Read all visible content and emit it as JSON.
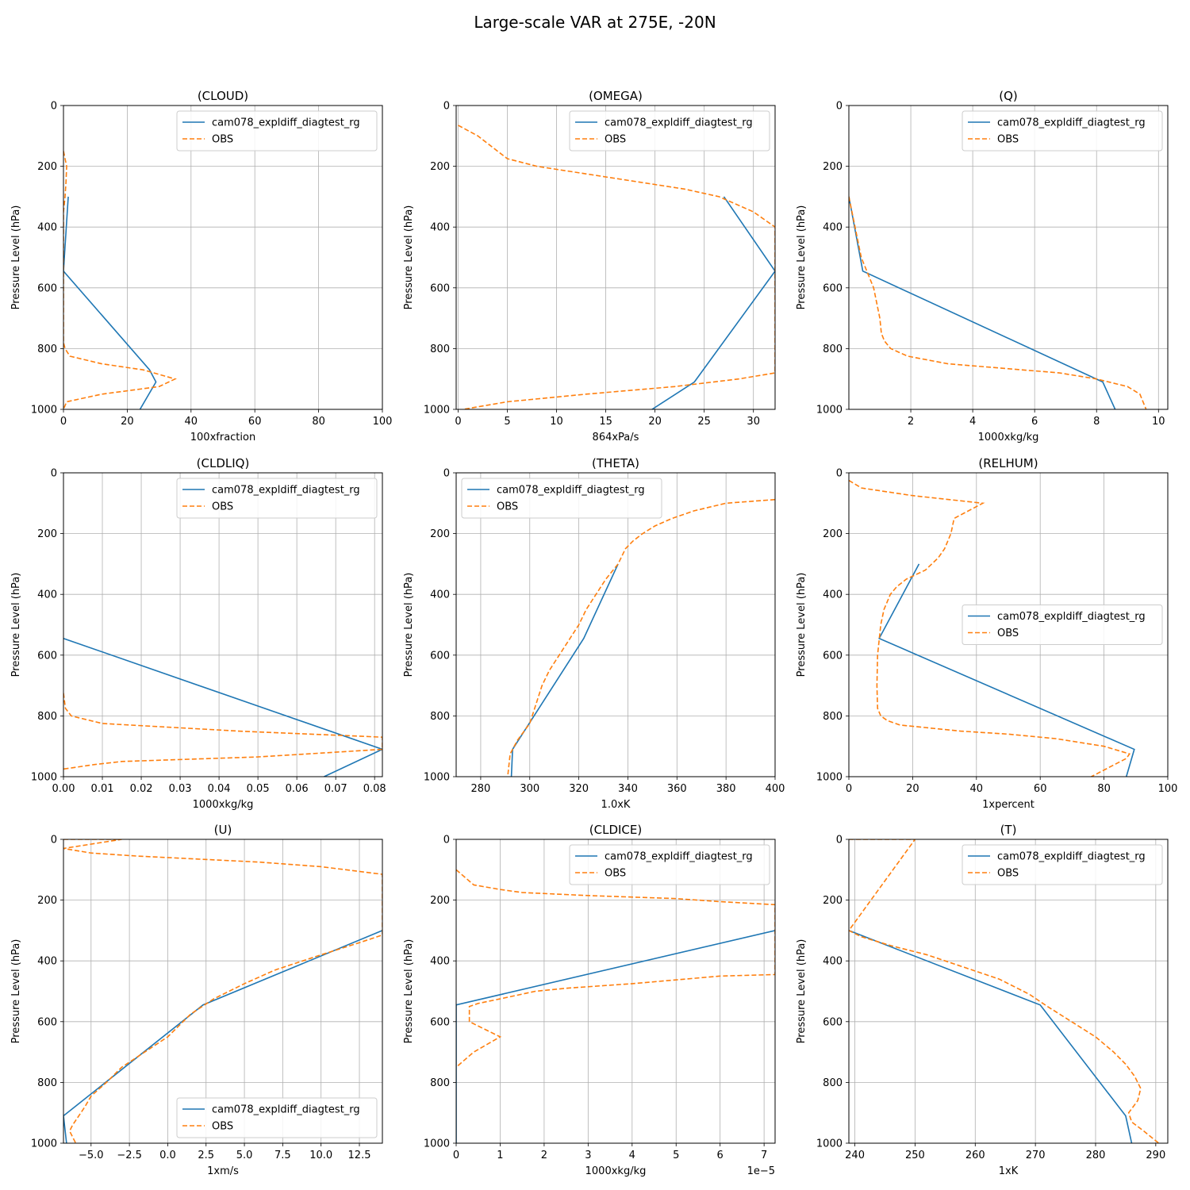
{
  "figure": {
    "title": "Large-scale VAR at 275E, -20N",
    "colors": {
      "model": "#1f77b4",
      "obs": "#ff7f0e",
      "grid": "#b0b0b0"
    }
  },
  "chart_data": [
    {
      "type": "line",
      "title": "(CLOUD)",
      "xlabel": "100xfraction",
      "ylabel": "Pressure Level (hPa)",
      "xlim": [
        0,
        100
      ],
      "ylim": [
        1000,
        0
      ],
      "xticks": [
        0,
        20,
        40,
        60,
        80,
        100
      ],
      "xtick_labels": [
        "0",
        "20",
        "40",
        "60",
        "80",
        "100"
      ],
      "yticks": [
        0,
        200,
        400,
        600,
        800,
        1000
      ],
      "ytick_labels": [
        "0",
        "200",
        "400",
        "600",
        "800",
        "1000"
      ],
      "offset_label": "",
      "legend": "top-right",
      "grid": true,
      "series": [
        {
          "name": "cam078_expldiff_diagtest_rg",
          "style": "solid",
          "x": [
            1.5,
            0,
            27,
            29,
            24
          ],
          "y": [
            300,
            545,
            870,
            910,
            1000
          ]
        },
        {
          "name": "OBS",
          "style": "dashed",
          "x": [
            0,
            0.5,
            1,
            0.8,
            0.5,
            0,
            0,
            0.5,
            2,
            12,
            25,
            35,
            30,
            12,
            1,
            0
          ],
          "y": [
            150,
            175,
            200,
            250,
            300,
            350,
            780,
            800,
            825,
            850,
            870,
            900,
            925,
            950,
            975,
            1000
          ]
        }
      ]
    },
    {
      "type": "line",
      "title": "(OMEGA)",
      "xlabel": "864xPa/s",
      "ylabel": "Pressure Level (hPa)",
      "xlim": [
        -0.2,
        32.2
      ],
      "ylim": [
        1000,
        0
      ],
      "xticks": [
        0,
        5,
        10,
        15,
        20,
        25,
        30
      ],
      "xtick_labels": [
        "0",
        "5",
        "10",
        "15",
        "20",
        "25",
        "30"
      ],
      "yticks": [
        0,
        200,
        400,
        600,
        800,
        1000
      ],
      "ytick_labels": [
        "0",
        "200",
        "400",
        "600",
        "800",
        "1000"
      ],
      "offset_label": "",
      "legend": "top-right",
      "grid": true,
      "series": [
        {
          "name": "cam078_expldiff_diagtest_rg",
          "style": "solid",
          "x": [
            27,
            32.2,
            24,
            19.7
          ],
          "y": [
            300,
            545,
            910,
            1000
          ]
        },
        {
          "name": "OBS",
          "style": "dashed",
          "x": [
            0,
            2,
            3,
            4,
            5,
            8,
            13,
            18,
            23,
            26.5,
            30,
            32.2,
            32.2,
            28.5,
            22,
            13,
            5,
            0.5
          ],
          "y": [
            65,
            100,
            125,
            150,
            175,
            200,
            225,
            250,
            275,
            300,
            350,
            400,
            880,
            900,
            925,
            950,
            975,
            1000
          ]
        }
      ]
    },
    {
      "type": "line",
      "title": "(Q)",
      "xlabel": "1000xkg/kg",
      "ylabel": "Pressure Level (hPa)",
      "xlim": [
        0,
        10.3
      ],
      "ylim": [
        1000,
        0
      ],
      "xticks": [
        2,
        4,
        6,
        8,
        10
      ],
      "xtick_labels": [
        "2",
        "4",
        "6",
        "8",
        "10"
      ],
      "yticks": [
        0,
        200,
        400,
        600,
        800,
        1000
      ],
      "ytick_labels": [
        "0",
        "200",
        "400",
        "600",
        "800",
        "1000"
      ],
      "offset_label": "",
      "legend": "top-right",
      "grid": true,
      "series": [
        {
          "name": "cam078_expldiff_diagtest_rg",
          "style": "solid",
          "x": [
            0,
            0.45,
            8.2,
            8.6
          ],
          "y": [
            300,
            545,
            910,
            1000
          ]
        },
        {
          "name": "OBS",
          "style": "dashed",
          "x": [
            0,
            0.2,
            0.4,
            0.6,
            0.8,
            0.9,
            1.0,
            1.05,
            1.15,
            1.35,
            1.9,
            3.2,
            5.0,
            6.8,
            8.0,
            9.0,
            9.4,
            9.6
          ],
          "y": [
            300,
            400,
            500,
            550,
            600,
            650,
            700,
            750,
            775,
            800,
            825,
            850,
            865,
            880,
            900,
            925,
            950,
            1000
          ]
        }
      ]
    },
    {
      "type": "line",
      "title": "(CLDLIQ)",
      "xlabel": "1000xkg/kg",
      "ylabel": "Pressure Level (hPa)",
      "xlim": [
        0,
        0.082
      ],
      "ylim": [
        1000,
        0
      ],
      "xticks": [
        0,
        0.01,
        0.02,
        0.03,
        0.04,
        0.05,
        0.06,
        0.07,
        0.08
      ],
      "xtick_labels": [
        "0.00",
        "0.01",
        "0.02",
        "0.03",
        "0.04",
        "0.05",
        "0.06",
        "0.07",
        "0.08"
      ],
      "yticks": [
        0,
        200,
        400,
        600,
        800,
        1000
      ],
      "ytick_labels": [
        "0",
        "200",
        "400",
        "600",
        "800",
        "1000"
      ],
      "offset_label": "",
      "legend": "top-right",
      "grid": true,
      "series": [
        {
          "name": "cam078_expldiff_diagtest_rg",
          "style": "solid",
          "x": [
            0,
            0.082,
            0.067
          ],
          "y": [
            545,
            910,
            1000
          ]
        },
        {
          "name": "OBS",
          "style": "dashed",
          "x": [
            0,
            0.0005,
            0.002,
            0.01,
            0.045,
            0.082,
            0.082,
            0.05,
            0.015,
            0.008,
            0
          ],
          "y": [
            725,
            775,
            800,
            825,
            850,
            870,
            910,
            935,
            950,
            960,
            975
          ]
        }
      ]
    },
    {
      "type": "line",
      "title": "(THETA)",
      "xlabel": "1.0xK",
      "ylabel": "Pressure Level (hPa)",
      "xlim": [
        270,
        400
      ],
      "ylim": [
        1000,
        0
      ],
      "xticks": [
        280,
        300,
        320,
        340,
        360,
        380,
        400
      ],
      "xtick_labels": [
        "280",
        "300",
        "320",
        "340",
        "360",
        "380",
        "400"
      ],
      "yticks": [
        0,
        200,
        400,
        600,
        800,
        1000
      ],
      "ytick_labels": [
        "0",
        "200",
        "400",
        "600",
        "800",
        "1000"
      ],
      "offset_label": "",
      "legend": "top-left",
      "grid": true,
      "series": [
        {
          "name": "cam078_expldiff_diagtest_rg",
          "style": "solid",
          "x": [
            336,
            322,
            293,
            292.5
          ],
          "y": [
            300,
            545,
            910,
            1000
          ]
        },
        {
          "name": "OBS",
          "style": "dashed",
          "x": [
            400,
            380,
            367,
            358,
            351,
            346,
            342,
            339,
            336,
            331,
            327,
            323,
            320,
            316,
            312,
            308,
            305,
            300,
            295,
            292,
            291
          ],
          "y": [
            88,
            100,
            125,
            150,
            175,
            200,
            225,
            250,
            300,
            350,
            400,
            450,
            500,
            550,
            600,
            650,
            700,
            825,
            880,
            925,
            1000
          ]
        }
      ]
    },
    {
      "type": "line",
      "title": "(RELHUM)",
      "xlabel": "1xpercent",
      "ylabel": "Pressure Level (hPa)",
      "xlim": [
        0,
        100
      ],
      "ylim": [
        1000,
        0
      ],
      "xticks": [
        0,
        20,
        40,
        60,
        80,
        100
      ],
      "xtick_labels": [
        "0",
        "20",
        "40",
        "60",
        "80",
        "100"
      ],
      "yticks": [
        0,
        200,
        400,
        600,
        800,
        1000
      ],
      "ytick_labels": [
        "0",
        "200",
        "400",
        "600",
        "800",
        "1000"
      ],
      "offset_label": "",
      "legend": "center-right",
      "grid": true,
      "series": [
        {
          "name": "cam078_expldiff_diagtest_rg",
          "style": "solid",
          "x": [
            22,
            9.5,
            89.5,
            87
          ],
          "y": [
            300,
            545,
            910,
            1000
          ]
        },
        {
          "name": "OBS",
          "style": "dashed",
          "x": [
            0,
            4,
            20,
            42,
            33,
            32,
            30,
            28,
            24,
            18,
            15,
            13,
            12,
            11,
            10,
            9.5,
            9,
            8.8,
            9,
            10,
            12,
            16,
            35,
            50,
            65,
            80,
            88,
            87,
            76
          ],
          "y": [
            25,
            50,
            75,
            100,
            150,
            200,
            250,
            280,
            320,
            350,
            375,
            400,
            425,
            450,
            500,
            550,
            600,
            700,
            775,
            800,
            815,
            830,
            850,
            860,
            875,
            900,
            925,
            940,
            1000
          ]
        }
      ]
    },
    {
      "type": "line",
      "title": "(U)",
      "xlabel": "1xm/s",
      "ylabel": "Pressure Level (hPa)",
      "xlim": [
        -6.8,
        14
      ],
      "ylim": [
        1000,
        0
      ],
      "xticks": [
        -5,
        -2.5,
        0,
        2.5,
        5,
        7.5,
        10,
        12.5
      ],
      "xtick_labels": [
        "−5.0",
        "−2.5",
        "0.0",
        "2.5",
        "5.0",
        "7.5",
        "10.0",
        "12.5"
      ],
      "yticks": [
        0,
        200,
        400,
        600,
        800,
        1000
      ],
      "ytick_labels": [
        "0",
        "200",
        "400",
        "600",
        "800",
        "1000"
      ],
      "offset_label": "",
      "legend": "bottom-right",
      "grid": true,
      "series": [
        {
          "name": "cam078_expldiff_diagtest_rg",
          "style": "solid",
          "x": [
            14,
            2.3,
            -6.8,
            -6.6
          ],
          "y": [
            300,
            545,
            910,
            1000
          ]
        },
        {
          "name": "OBS",
          "style": "dashed",
          "x": [
            -6.8,
            -3,
            -6.8,
            -5,
            -2,
            2,
            6,
            10,
            14,
            14,
            12.5,
            10,
            7,
            5,
            3,
            1.5,
            0,
            -1.5,
            -3,
            -4,
            -5,
            -5.4,
            -5.8,
            -6.2,
            -6.4,
            -6.0
          ],
          "y": [
            0,
            0,
            30,
            45,
            55,
            65,
            75,
            90,
            115,
            315,
            340,
            380,
            430,
            475,
            525,
            575,
            650,
            700,
            750,
            800,
            845,
            880,
            910,
            940,
            960,
            1000
          ]
        }
      ]
    },
    {
      "type": "line",
      "title": "(CLDICE)",
      "xlabel": "1000xkg/kg",
      "ylabel": "Pressure Level (hPa)",
      "xlim": [
        0,
        7.25e-05
      ],
      "ylim": [
        1000,
        0
      ],
      "xticks": [
        0,
        1e-05,
        2e-05,
        3e-05,
        4e-05,
        5e-05,
        6e-05,
        7e-05
      ],
      "xtick_labels": [
        "0",
        "1",
        "2",
        "3",
        "4",
        "5",
        "6",
        "7"
      ],
      "yticks": [
        0,
        200,
        400,
        600,
        800,
        1000
      ],
      "ytick_labels": [
        "0",
        "200",
        "400",
        "600",
        "800",
        "1000"
      ],
      "offset_label": "1e−5",
      "legend": "top-right",
      "grid": true,
      "series": [
        {
          "name": "cam078_expldiff_diagtest_rg",
          "style": "solid",
          "x": [
            7.25e-05,
            0,
            0
          ],
          "y": [
            300,
            545,
            1000
          ]
        },
        {
          "name": "OBS",
          "style": "dashed",
          "x": [
            0,
            2e-06,
            4e-06,
            1e-05,
            1.5e-05,
            3e-05,
            5e-05,
            6e-05,
            7.25e-05,
            7.25e-05,
            6e-05,
            4e-05,
            2.5e-05,
            1.8e-05,
            1e-05,
            5e-06,
            3e-06,
            3e-06,
            1e-05,
            4e-06,
            2e-06,
            0
          ],
          "y": [
            100,
            125,
            150,
            165,
            175,
            185,
            195,
            205,
            215,
            445,
            450,
            475,
            490,
            500,
            525,
            540,
            550,
            600,
            650,
            700,
            725,
            750
          ]
        }
      ]
    },
    {
      "type": "line",
      "title": "(T)",
      "xlabel": "1xK",
      "ylabel": "Pressure Level (hPa)",
      "xlim": [
        239,
        292
      ],
      "ylim": [
        1000,
        0
      ],
      "xticks": [
        240,
        250,
        260,
        270,
        280,
        290
      ],
      "xtick_labels": [
        "240",
        "250",
        "260",
        "270",
        "280",
        "290"
      ],
      "yticks": [
        0,
        200,
        400,
        600,
        800,
        1000
      ],
      "ytick_labels": [
        "0",
        "200",
        "400",
        "600",
        "800",
        "1000"
      ],
      "offset_label": "",
      "legend": "top-right",
      "grid": true,
      "series": [
        {
          "name": "cam078_expldiff_diagtest_rg",
          "style": "solid",
          "x": [
            239,
            270.8,
            285,
            286
          ],
          "y": [
            300,
            545,
            910,
            1000
          ]
        },
        {
          "name": "OBS",
          "style": "dashed",
          "x": [
            239,
            250,
            239,
            241,
            246,
            252,
            258,
            264,
            269,
            272,
            276,
            280,
            283,
            285,
            286.5,
            287.5,
            287,
            285.5,
            286,
            288,
            290.5
          ],
          "y": [
            0,
            0,
            300,
            320,
            350,
            380,
            420,
            460,
            510,
            550,
            600,
            650,
            700,
            740,
            780,
            820,
            860,
            900,
            930,
            960,
            1000
          ]
        }
      ]
    }
  ]
}
